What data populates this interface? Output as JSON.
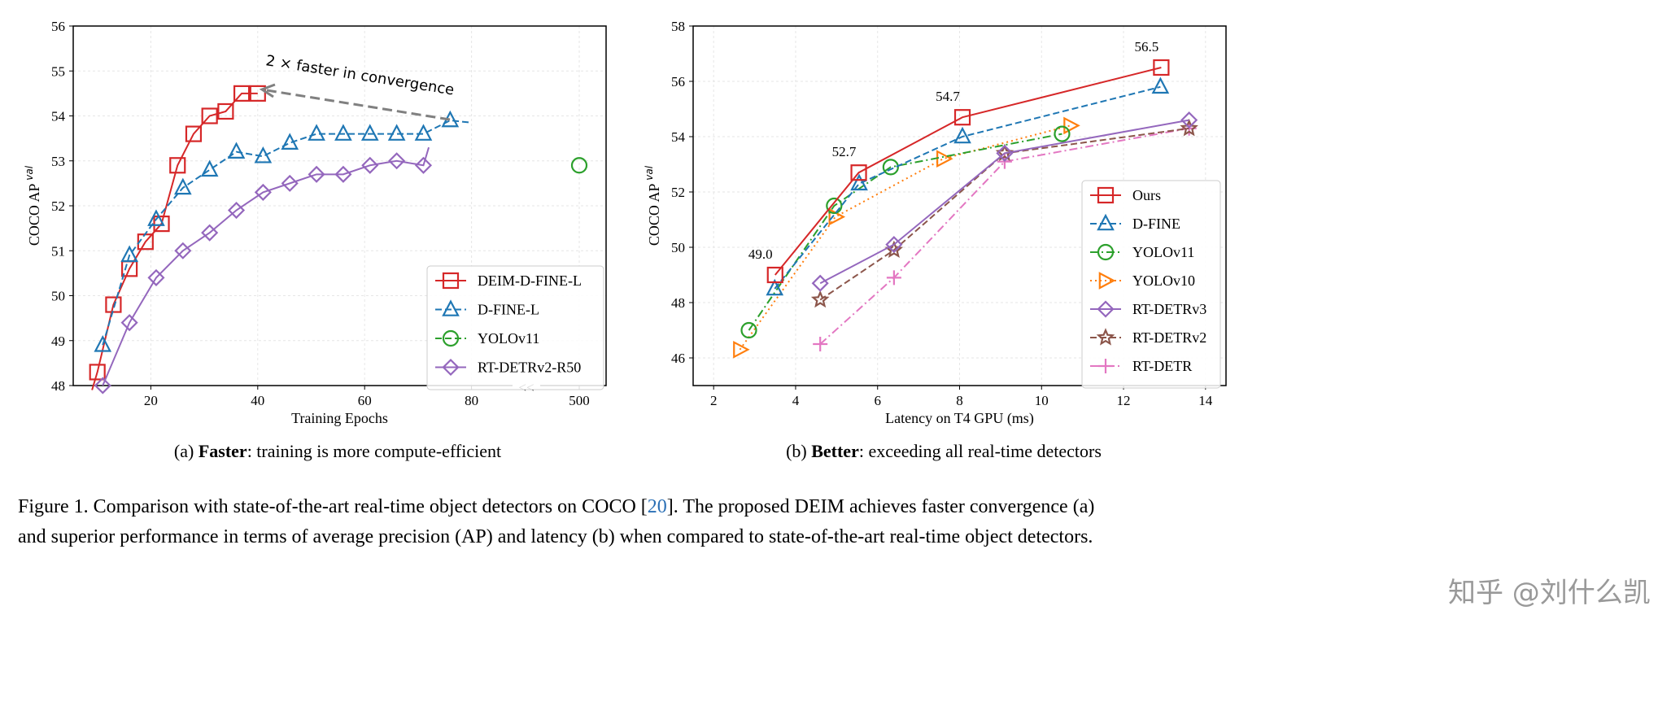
{
  "colors": {
    "red": "#d62728",
    "blue": "#1f77b4",
    "green": "#2ca02c",
    "orange": "#ff7f0e",
    "purple": "#9467bd",
    "brown": "#8c564b",
    "pink": "#e377c2",
    "arrow": "#808080"
  },
  "chart_data": [
    {
      "type": "line",
      "xlabel": "Training Epochs",
      "ylabel": "COCO AP",
      "ylabel_sup": "val",
      "ylim": [
        48,
        56
      ],
      "xticks": [
        20,
        40,
        60,
        80,
        500
      ],
      "yticks": [
        48,
        49,
        50,
        51,
        52,
        53,
        54,
        55,
        56
      ],
      "axis_break": "<<",
      "grid": true,
      "legend": "bottom-right",
      "annotation": "2 ×  faster in convergence",
      "series": [
        {
          "name": "DEIM-D-FINE-L",
          "color": "#d62728",
          "marker": "square",
          "dash": "solid",
          "x": [
            10,
            13,
            16,
            19,
            22,
            25,
            28,
            31,
            34,
            37,
            40
          ],
          "y": [
            48.3,
            49.8,
            50.6,
            51.2,
            51.6,
            52.9,
            53.6,
            54.0,
            54.1,
            54.5,
            54.5
          ]
        },
        {
          "name": "D-FINE-L",
          "color": "#1f77b4",
          "marker": "triangle",
          "dash": "dashed",
          "x": [
            11,
            16,
            21,
            26,
            31,
            36,
            41,
            46,
            51,
            56,
            61,
            66,
            71,
            76
          ],
          "y": [
            48.9,
            50.9,
            51.7,
            52.4,
            52.8,
            53.2,
            53.1,
            53.4,
            53.6,
            53.6,
            53.6,
            53.6,
            53.6,
            53.9
          ]
        },
        {
          "name": "YOLOv11",
          "color": "#2ca02c",
          "marker": "circle",
          "dash": "dashed",
          "x": [
            500
          ],
          "y": [
            52.9
          ]
        },
        {
          "name": "RT-DETRv2-R50",
          "color": "#9467bd",
          "marker": "diamond",
          "dash": "solid",
          "x": [
            11,
            16,
            21,
            26,
            31,
            36,
            41,
            46,
            51,
            56,
            61,
            66,
            71
          ],
          "y": [
            48.0,
            49.4,
            50.4,
            51.0,
            51.4,
            51.9,
            52.3,
            52.5,
            52.7,
            52.7,
            52.9,
            53.0,
            52.9
          ]
        }
      ],
      "caption_bold": "Faster",
      "caption_rest": ": training is more compute-efficient",
      "caption_prefix": "(a) "
    },
    {
      "type": "line",
      "xlabel": "Latency on T4 GPU (ms)",
      "ylabel": "COCO AP",
      "ylabel_sup": "val",
      "xlim": [
        1.5,
        14.5
      ],
      "ylim": [
        45,
        58
      ],
      "xticks": [
        2,
        4,
        6,
        8,
        10,
        12,
        14
      ],
      "yticks": [
        46,
        48,
        50,
        52,
        54,
        56,
        58
      ],
      "grid": true,
      "legend": "bottom-right",
      "data_labels": [
        "49.0",
        "52.7",
        "54.7",
        "56.5"
      ],
      "series": [
        {
          "name": "Ours",
          "color": "#d62728",
          "marker": "square",
          "dash": "solid",
          "x": [
            3.5,
            5.54,
            8.07,
            12.92
          ],
          "y": [
            49.0,
            52.7,
            54.7,
            56.5
          ]
        },
        {
          "name": "D-FINE",
          "color": "#1f77b4",
          "marker": "triangle",
          "dash": "dashed",
          "x": [
            3.49,
            5.55,
            8.07,
            12.9
          ],
          "y": [
            48.5,
            52.3,
            54.0,
            55.8
          ]
        },
        {
          "name": "YOLOv11",
          "color": "#2ca02c",
          "marker": "circle",
          "dash": "dashdot",
          "x": [
            2.86,
            4.94,
            6.32,
            10.5
          ],
          "y": [
            47.0,
            51.5,
            52.9,
            54.1
          ]
        },
        {
          "name": "YOLOv10",
          "color": "#ff7f0e",
          "marker": "triangle-right",
          "dash": "dotted",
          "x": [
            2.64,
            4.97,
            7.6,
            10.7
          ],
          "y": [
            46.3,
            51.1,
            53.2,
            54.4
          ]
        },
        {
          "name": "RT-DETRv3",
          "color": "#9467bd",
          "marker": "diamond",
          "dash": "solid",
          "x": [
            4.6,
            6.4,
            9.1,
            13.6
          ],
          "y": [
            48.7,
            50.1,
            53.4,
            54.6
          ]
        },
        {
          "name": "RT-DETRv2",
          "color": "#8c564b",
          "marker": "star",
          "dash": "dashed",
          "x": [
            4.6,
            6.4,
            9.1,
            13.6
          ],
          "y": [
            48.1,
            49.9,
            53.4,
            54.3
          ]
        },
        {
          "name": "RT-DETR",
          "color": "#e377c2",
          "marker": "plus",
          "dash": "dashdot",
          "x": [
            4.6,
            6.4,
            9.1,
            13.6
          ],
          "y": [
            46.5,
            48.9,
            53.1,
            54.3
          ]
        }
      ],
      "caption_bold": "Better",
      "caption_rest": ": exceeding all real-time detectors",
      "caption_prefix": "(b) "
    }
  ],
  "figure_caption": {
    "line1_a": "Figure 1. Comparison with state-of-the-art real-time object detectors on COCO [",
    "ref": "20",
    "line1_b": "]. The proposed DEIM achieves faster convergence (a)",
    "line2": "and superior performance in terms of average precision (AP) and latency (b) when compared to state-of-the-art real-time object detectors."
  },
  "watermark": "知乎 @刘什么凯"
}
